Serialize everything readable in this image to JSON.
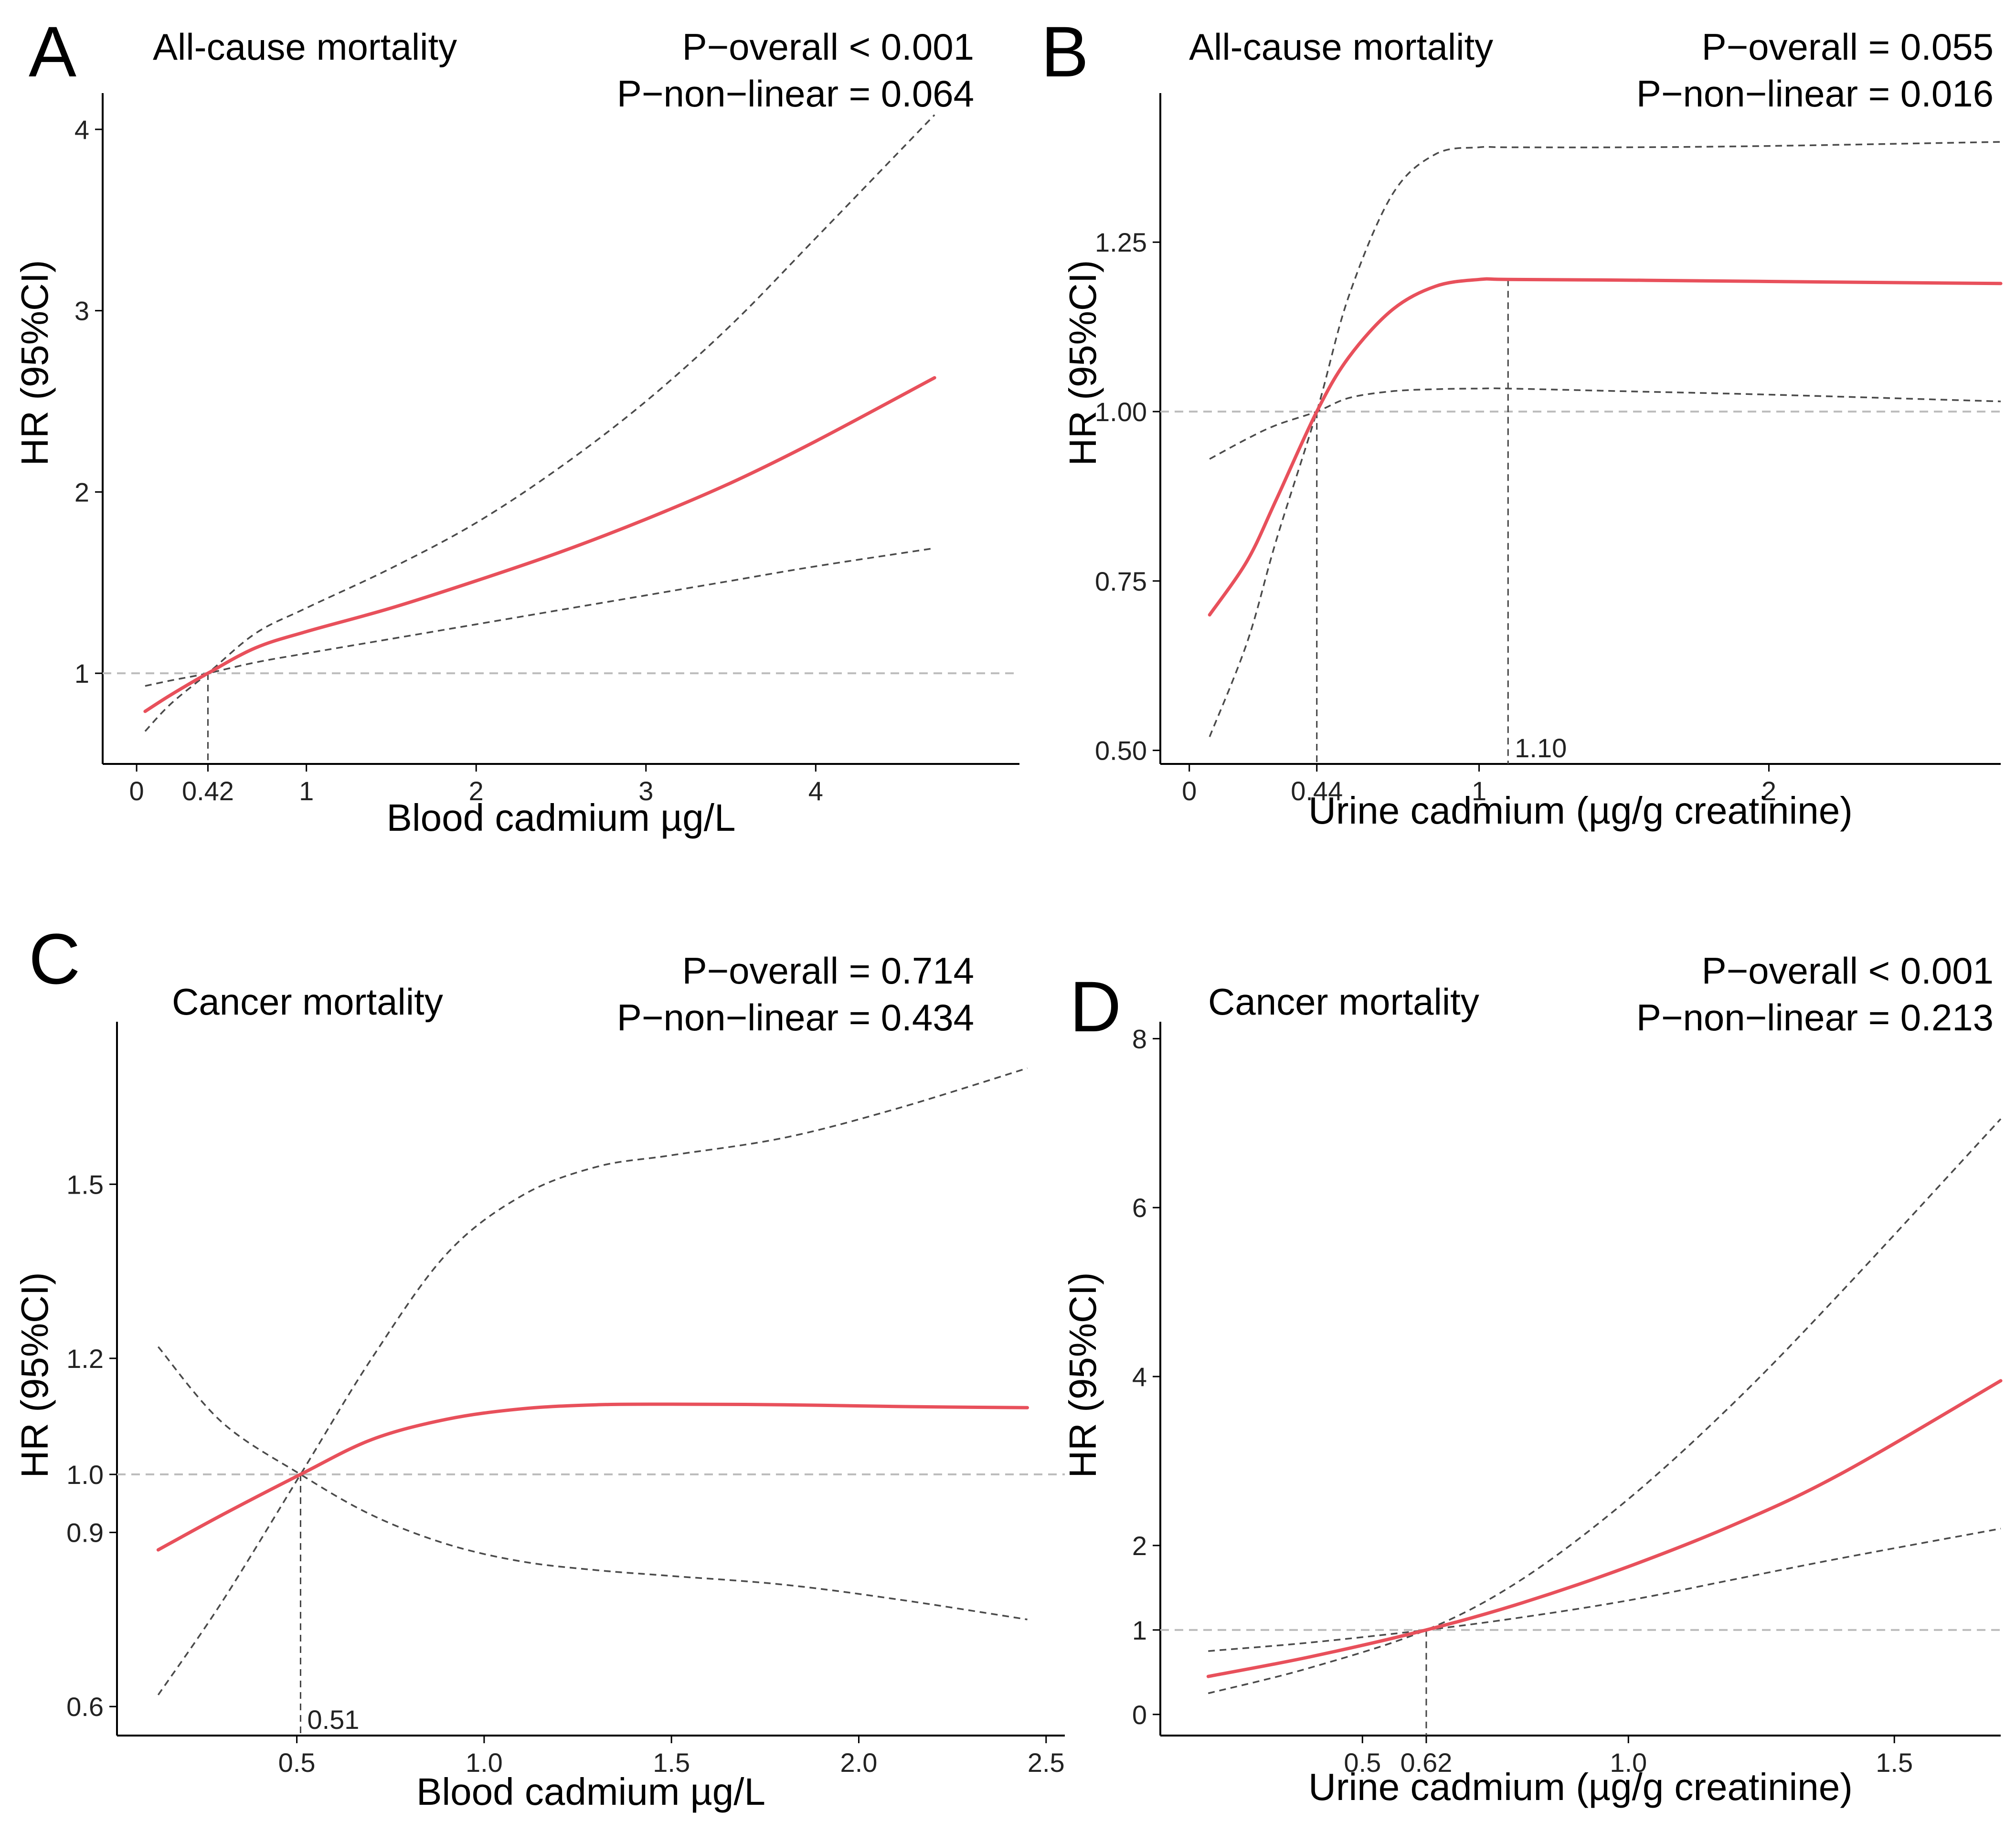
{
  "figure": {
    "colors": {
      "hr_line": "#e8505b",
      "ci_line": "#4a4a4a",
      "ref_line": "#bdbdbd",
      "axis": "#000000"
    }
  },
  "chart_data": [
    {
      "type": "line",
      "panel_letter": "A",
      "title": "All-cause mortality",
      "p_overall": "P−overall < 0.001",
      "p_nonlinear": "P−non−linear = 0.064",
      "xlabel": "Blood cadmium µg/L",
      "ylabel": "HR (95%CI)",
      "xlim": [
        -0.2,
        5.2
      ],
      "ylim": [
        0.5,
        4.2
      ],
      "x_ticks": [
        {
          "value": 0,
          "label": "0"
        },
        {
          "value": 0.42,
          "label": "0.42"
        },
        {
          "value": 1,
          "label": "1"
        },
        {
          "value": 2,
          "label": "2"
        },
        {
          "value": 3,
          "label": "3"
        },
        {
          "value": 4,
          "label": "4"
        }
      ],
      "y_ticks": [
        {
          "value": 1,
          "label": "1"
        },
        {
          "value": 2,
          "label": "2"
        },
        {
          "value": 3,
          "label": "3"
        },
        {
          "value": 4,
          "label": "4"
        }
      ],
      "reference_hr": 1.0,
      "markers": [
        {
          "x": 0.42,
          "y": 1.0
        }
      ],
      "series": [
        {
          "name": "HR",
          "x": [
            0.05,
            0.2,
            0.42,
            0.7,
            1.0,
            1.5,
            2.0,
            2.5,
            3.0,
            3.5,
            4.0,
            4.7
          ],
          "values": [
            0.79,
            0.88,
            1.0,
            1.14,
            1.23,
            1.36,
            1.51,
            1.67,
            1.85,
            2.05,
            2.28,
            2.63
          ]
        },
        {
          "name": "95% CI upper",
          "x": [
            0.05,
            0.2,
            0.42,
            0.7,
            1.0,
            1.5,
            2.0,
            2.5,
            3.0,
            3.5,
            4.0,
            4.7
          ],
          "values": [
            0.68,
            0.83,
            1.0,
            1.22,
            1.36,
            1.58,
            1.83,
            2.14,
            2.5,
            2.92,
            3.4,
            4.08
          ]
        },
        {
          "name": "95% CI lower",
          "x": [
            0.05,
            0.2,
            0.42,
            0.7,
            1.0,
            1.5,
            2.0,
            2.5,
            3.0,
            3.5,
            4.0,
            4.7
          ],
          "values": [
            0.93,
            0.96,
            1.0,
            1.06,
            1.11,
            1.19,
            1.27,
            1.35,
            1.43,
            1.51,
            1.59,
            1.69
          ]
        }
      ]
    },
    {
      "type": "line",
      "panel_letter": "B",
      "title": "All-cause mortality",
      "p_overall": "P−overall = 0.055",
      "p_nonlinear": "P−non−linear = 0.016",
      "xlabel": "Urine cadmium (µg/g creatinine)",
      "ylabel": "HR (95%CI)",
      "xlim": [
        -0.1,
        2.8
      ],
      "ylim": [
        0.48,
        1.47
      ],
      "x_ticks": [
        {
          "value": 0,
          "label": "0"
        },
        {
          "value": 0.44,
          "label": "0.44"
        },
        {
          "value": 1,
          "label": "1"
        },
        {
          "value": 2,
          "label": "2"
        }
      ],
      "y_ticks": [
        {
          "value": 0.5,
          "label": "0.50"
        },
        {
          "value": 0.75,
          "label": "0.75"
        },
        {
          "value": 1.0,
          "label": "1.00"
        },
        {
          "value": 1.25,
          "label": "1.25"
        }
      ],
      "reference_hr": 1.0,
      "markers": [
        {
          "x": 0.44,
          "y": 1.0
        },
        {
          "x": 1.1,
          "y": 1.195,
          "label": "1.10"
        }
      ],
      "series": [
        {
          "name": "HR",
          "x": [
            0.07,
            0.2,
            0.3,
            0.44,
            0.55,
            0.7,
            0.85,
            1.0,
            1.1,
            1.5,
            2.0,
            2.8
          ],
          "values": [
            0.7,
            0.78,
            0.87,
            1.0,
            1.08,
            1.15,
            1.185,
            1.195,
            1.195,
            1.194,
            1.192,
            1.189
          ]
        },
        {
          "name": "95% CI upper",
          "x": [
            0.07,
            0.2,
            0.3,
            0.44,
            0.55,
            0.7,
            0.85,
            1.0,
            1.1,
            1.5,
            2.0,
            2.8
          ],
          "values": [
            0.52,
            0.66,
            0.81,
            1.0,
            1.17,
            1.32,
            1.38,
            1.39,
            1.39,
            1.39,
            1.392,
            1.398
          ]
        },
        {
          "name": "95% CI lower",
          "x": [
            0.07,
            0.2,
            0.3,
            0.44,
            0.55,
            0.7,
            0.85,
            1.0,
            1.1,
            1.5,
            2.0,
            2.8
          ],
          "values": [
            0.93,
            0.96,
            0.98,
            1.0,
            1.02,
            1.03,
            1.033,
            1.034,
            1.034,
            1.03,
            1.025,
            1.015
          ]
        }
      ]
    },
    {
      "type": "line",
      "panel_letter": "C",
      "title": "Cancer mortality",
      "p_overall": "P−overall = 0.714",
      "p_nonlinear": "P−non−linear = 0.434",
      "xlabel": "Blood cadmium µg/L",
      "ylabel": "HR (95%CI)",
      "xlim": [
        0.02,
        2.55
      ],
      "ylim": [
        0.55,
        1.78
      ],
      "x_ticks": [
        {
          "value": 0.5,
          "label": "0.5"
        },
        {
          "value": 1.0,
          "label": "1.0"
        },
        {
          "value": 1.5,
          "label": "1.5"
        },
        {
          "value": 2.0,
          "label": "2.0"
        },
        {
          "value": 2.5,
          "label": "2.5"
        }
      ],
      "y_ticks": [
        {
          "value": 0.6,
          "label": "0.6"
        },
        {
          "value": 0.9,
          "label": "0.9"
        },
        {
          "value": 1.0,
          "label": "1.0"
        },
        {
          "value": 1.2,
          "label": "1.2"
        },
        {
          "value": 1.5,
          "label": "1.5"
        }
      ],
      "reference_hr": 1.0,
      "markers": [
        {
          "x": 0.51,
          "y": 1.0,
          "label": "0.51"
        }
      ],
      "series": [
        {
          "name": "HR",
          "x": [
            0.13,
            0.3,
            0.51,
            0.7,
            0.9,
            1.1,
            1.3,
            1.5,
            1.8,
            2.1,
            2.45
          ],
          "values": [
            0.87,
            0.93,
            1.0,
            1.06,
            1.095,
            1.113,
            1.12,
            1.121,
            1.12,
            1.117,
            1.115
          ]
        },
        {
          "name": "95% CI upper",
          "x": [
            0.13,
            0.3,
            0.51,
            0.7,
            0.9,
            1.1,
            1.3,
            1.5,
            1.8,
            2.1,
            2.45
          ],
          "values": [
            0.62,
            0.78,
            1.0,
            1.2,
            1.38,
            1.48,
            1.53,
            1.55,
            1.58,
            1.63,
            1.7
          ]
        },
        {
          "name": "95% CI lower",
          "x": [
            0.13,
            0.3,
            0.51,
            0.7,
            0.9,
            1.1,
            1.3,
            1.5,
            1.8,
            2.1,
            2.45
          ],
          "values": [
            1.22,
            1.09,
            1.0,
            0.93,
            0.88,
            0.85,
            0.835,
            0.825,
            0.81,
            0.785,
            0.75
          ]
        }
      ]
    },
    {
      "type": "line",
      "panel_letter": "D",
      "title": "Cancer mortality",
      "p_overall": "P−overall < 0.001",
      "p_nonlinear": "P−non−linear = 0.213",
      "xlabel": "Urine cadmium (µg/g creatinine)",
      "ylabel": "HR (95%CI)",
      "xlim": [
        0.12,
        1.7
      ],
      "ylim": [
        -0.25,
        8.2
      ],
      "x_ticks": [
        {
          "value": 0.5,
          "label": "0.5"
        },
        {
          "value": 0.62,
          "label": "0.62"
        },
        {
          "value": 1.0,
          "label": "1.0"
        },
        {
          "value": 1.5,
          "label": "1.5"
        }
      ],
      "y_ticks": [
        {
          "value": 0,
          "label": "0"
        },
        {
          "value": 1,
          "label": "1"
        },
        {
          "value": 2,
          "label": "2"
        },
        {
          "value": 4,
          "label": "4"
        },
        {
          "value": 6,
          "label": "6"
        },
        {
          "value": 8,
          "label": "8"
        }
      ],
      "reference_hr": 1.0,
      "markers": [
        {
          "x": 0.62,
          "y": 1.0
        }
      ],
      "series": [
        {
          "name": "HR",
          "x": [
            0.21,
            0.4,
            0.62,
            0.8,
            1.0,
            1.2,
            1.4,
            1.7
          ],
          "values": [
            0.45,
            0.68,
            1.0,
            1.32,
            1.75,
            2.25,
            2.85,
            3.95
          ]
        },
        {
          "name": "95% CI upper",
          "x": [
            0.21,
            0.4,
            0.62,
            0.8,
            1.0,
            1.2,
            1.4,
            1.7
          ],
          "values": [
            0.25,
            0.55,
            1.0,
            1.6,
            2.55,
            3.7,
            5.0,
            7.05
          ]
        },
        {
          "name": "95% CI lower",
          "x": [
            0.21,
            0.4,
            0.62,
            0.8,
            1.0,
            1.2,
            1.4,
            1.7
          ],
          "values": [
            0.75,
            0.85,
            1.0,
            1.15,
            1.35,
            1.6,
            1.85,
            2.2
          ]
        }
      ]
    }
  ]
}
